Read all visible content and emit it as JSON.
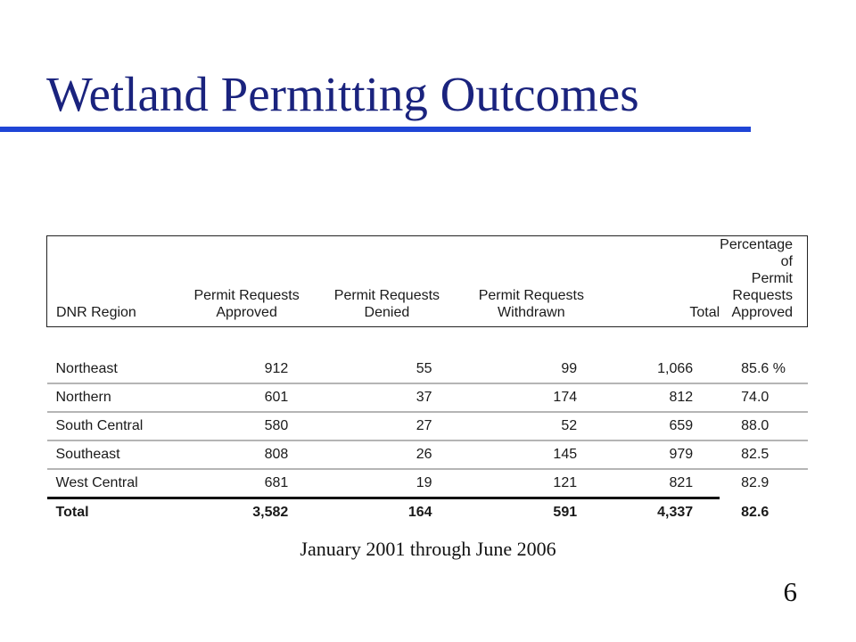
{
  "slide": {
    "title": "Wetland Permitting Outcomes",
    "caption": "January 2001 through June 2006",
    "page_number": "6",
    "colors": {
      "title_text": "#1a237e",
      "title_rule": "#1f45d6"
    }
  },
  "table": {
    "headers": {
      "region": "DNR Region",
      "approved_line1": "Permit Requests",
      "approved_line2": "Approved",
      "denied_line1": "Permit Requests",
      "denied_line2": "Denied",
      "withdrawn_line1": "Permit Requests",
      "withdrawn_line2": "Withdrawn",
      "total": "Total",
      "pct_line1": "Percentage of",
      "pct_line2": "Permit Requests",
      "pct_line3": "Approved"
    },
    "rows": [
      {
        "region": "Northeast",
        "approved": "912",
        "denied": "55",
        "withdrawn": "99",
        "total": "1,066",
        "pct": "85.6 %"
      },
      {
        "region": "Northern",
        "approved": "601",
        "denied": "37",
        "withdrawn": "174",
        "total": "812",
        "pct": "74.0"
      },
      {
        "region": "South Central",
        "approved": "580",
        "denied": "27",
        "withdrawn": "52",
        "total": "659",
        "pct": "88.0"
      },
      {
        "region": "Southeast",
        "approved": "808",
        "denied": "26",
        "withdrawn": "145",
        "total": "979",
        "pct": "82.5"
      },
      {
        "region": "West Central",
        "approved": "681",
        "denied": "19",
        "withdrawn": "121",
        "total": "821",
        "pct": "82.9"
      }
    ],
    "total_row": {
      "region": "Total",
      "approved": "3,582",
      "denied": "164",
      "withdrawn": "591",
      "total": "4,337",
      "pct": "82.6"
    }
  }
}
